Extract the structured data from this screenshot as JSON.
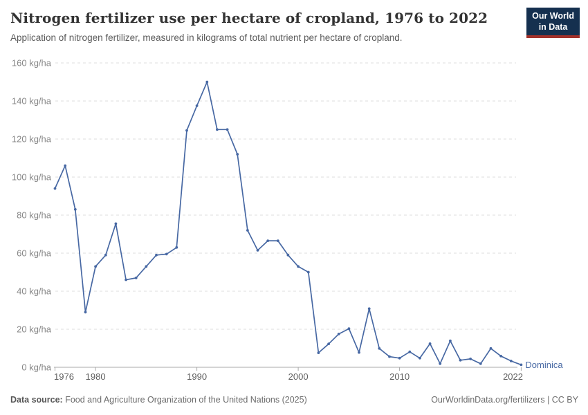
{
  "header": {
    "title": "Nitrogen fertilizer use per hectare of cropland, 1976 to 2022",
    "subtitle": "Application of nitrogen fertilizer, measured in kilograms of total nutrient per hectare of cropland.",
    "logo_line1": "Our World",
    "logo_line2": "in Data"
  },
  "colors": {
    "line": "#4768a3",
    "entity_label": "#4768a3",
    "logo_background": "#15304f",
    "logo_bar": "#a3312a",
    "gridline": "#dedede",
    "axis": "#a8a8a8",
    "y_tick_text": "#878787",
    "x_tick_text": "#5e5e5e"
  },
  "chart_data": {
    "type": "line",
    "title": "Nitrogen fertilizer use per hectare of cropland, 1976 to 2022",
    "subtitle": "Application of nitrogen fertilizer, measured in kilograms of total nutrient per hectare of cropland.",
    "unit": "kg/ha",
    "xlabel": "",
    "ylabel": "kg/ha",
    "xlim": [
      1976,
      2022
    ],
    "ylim": [
      0,
      160
    ],
    "x_ticks": [
      1976,
      1980,
      1990,
      2000,
      2010,
      2022
    ],
    "y_ticks": [
      0,
      20,
      40,
      60,
      80,
      100,
      120,
      140,
      160
    ],
    "y_tick_suffix": " kg/ha",
    "grid": "horizontal-dashed",
    "legend": "end-of-line-label",
    "series": [
      {
        "name": "Dominica",
        "color": "#4768a3",
        "x": [
          1976,
          1977,
          1978,
          1979,
          1980,
          1981,
          1982,
          1983,
          1984,
          1985,
          1986,
          1987,
          1988,
          1989,
          1990,
          1991,
          1992,
          1993,
          1994,
          1995,
          1996,
          1997,
          1998,
          1999,
          2000,
          2001,
          2002,
          2003,
          2004,
          2005,
          2006,
          2007,
          2008,
          2009,
          2010,
          2011,
          2012,
          2013,
          2014,
          2015,
          2016,
          2017,
          2018,
          2019,
          2020,
          2021,
          2022
        ],
        "values": [
          94,
          106,
          83,
          29,
          53,
          59,
          75.5,
          46,
          47,
          53,
          59,
          59.5,
          63,
          124.5,
          137.5,
          150,
          125,
          125,
          112,
          72,
          61.5,
          66.5,
          66.5,
          59,
          53,
          50,
          7.6,
          12.3,
          17.5,
          20.3,
          7.8,
          30.8,
          9.9,
          5.6,
          4.8,
          8.1,
          4.8,
          12.4,
          1.9,
          13.9,
          3.7,
          4.4,
          1.9,
          9.9,
          5.9,
          3.3,
          1.3
        ]
      }
    ]
  },
  "footer": {
    "source_label": "Data source:",
    "source_text": "Food and Agriculture Organization of the United Nations (2025)",
    "rights_text": "OurWorldinData.org/fertilizers | CC BY"
  }
}
